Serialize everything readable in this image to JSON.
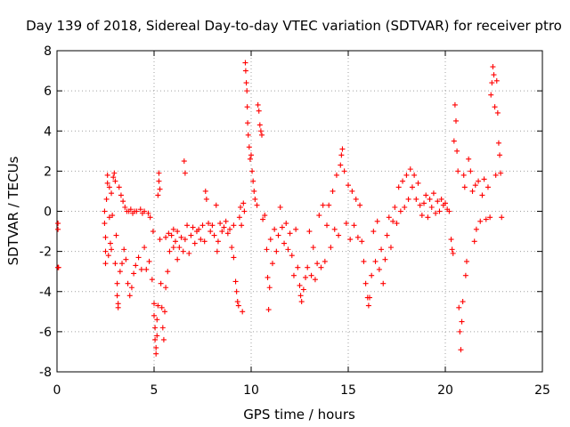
{
  "chart_data": {
    "type": "scatter",
    "title": "Day 139 of 2018, Sidereal Day-to-day VTEC variation (SDTVAR) for receiver ptro",
    "xlabel": "GPS time / hours",
    "ylabel": "SDTVAR / TECUs",
    "xlim": [
      0,
      25
    ],
    "ylim": [
      -8,
      8
    ],
    "x_ticks": [
      0,
      5,
      10,
      15,
      20,
      25
    ],
    "y_ticks": [
      -8,
      -6,
      -4,
      -2,
      0,
      2,
      4,
      6,
      8
    ],
    "x_tick_labels": [
      "0",
      "5",
      "10",
      "15",
      "20",
      "25"
    ],
    "y_tick_labels": [
      "-8",
      "-6",
      "-4",
      "-2",
      "0",
      "2",
      "4",
      "6",
      "8"
    ],
    "grid": true,
    "marker": "+",
    "color": "#ff0000",
    "series": [
      {
        "name": "ptro",
        "points": [
          [
            0.05,
            -0.6
          ],
          [
            0.05,
            -0.9
          ],
          [
            0.05,
            -2.8
          ],
          [
            0.08,
            -2.8
          ],
          [
            2.45,
            0.0
          ],
          [
            2.45,
            -0.6
          ],
          [
            2.5,
            -1.3
          ],
          [
            2.5,
            -2.0
          ],
          [
            2.5,
            -2.6
          ],
          [
            2.55,
            0.6
          ],
          [
            2.6,
            1.4
          ],
          [
            2.6,
            1.8
          ],
          [
            2.65,
            -2.2
          ],
          [
            2.7,
            -0.3
          ],
          [
            2.7,
            1.2
          ],
          [
            2.75,
            -1.6
          ],
          [
            2.8,
            -1.9
          ],
          [
            2.8,
            0.9
          ],
          [
            2.85,
            -0.2
          ],
          [
            2.9,
            1.7
          ],
          [
            2.95,
            1.9
          ],
          [
            3.0,
            -2.6
          ],
          [
            3.0,
            1.5
          ],
          [
            3.05,
            -1.2
          ],
          [
            3.1,
            -3.6
          ],
          [
            3.1,
            -4.2
          ],
          [
            3.15,
            -4.6
          ],
          [
            3.15,
            -4.8
          ],
          [
            3.2,
            1.2
          ],
          [
            3.25,
            -3.0
          ],
          [
            3.3,
            0.8
          ],
          [
            3.35,
            -2.6
          ],
          [
            3.4,
            0.5
          ],
          [
            3.45,
            -1.9
          ],
          [
            3.5,
            0.2
          ],
          [
            3.55,
            -2.4
          ],
          [
            3.6,
            0.0
          ],
          [
            3.65,
            -3.6
          ],
          [
            3.7,
            0.0
          ],
          [
            3.75,
            -4.2
          ],
          [
            3.8,
            0.1
          ],
          [
            3.85,
            -3.8
          ],
          [
            3.9,
            -0.1
          ],
          [
            3.95,
            -3.1
          ],
          [
            4.0,
            0.0
          ],
          [
            4.05,
            -2.7
          ],
          [
            4.1,
            0.0
          ],
          [
            4.2,
            -2.3
          ],
          [
            4.3,
            0.1
          ],
          [
            4.35,
            -2.9
          ],
          [
            4.4,
            -0.1
          ],
          [
            4.5,
            -1.8
          ],
          [
            4.5,
            0.0
          ],
          [
            4.6,
            -2.9
          ],
          [
            4.7,
            -0.1
          ],
          [
            4.75,
            -2.5
          ],
          [
            4.8,
            -0.3
          ],
          [
            4.9,
            -3.4
          ],
          [
            4.95,
            -1.0
          ],
          [
            5.0,
            -4.6
          ],
          [
            5.0,
            -5.2
          ],
          [
            5.05,
            -5.8
          ],
          [
            5.05,
            -6.4
          ],
          [
            5.1,
            -6.8
          ],
          [
            5.1,
            -7.1
          ],
          [
            5.15,
            -6.2
          ],
          [
            5.15,
            -5.4
          ],
          [
            5.2,
            -4.7
          ],
          [
            5.2,
            0.8
          ],
          [
            5.25,
            1.5
          ],
          [
            5.25,
            1.9
          ],
          [
            5.3,
            1.1
          ],
          [
            5.3,
            -1.4
          ],
          [
            5.35,
            -3.6
          ],
          [
            5.4,
            -4.8
          ],
          [
            5.45,
            -5.8
          ],
          [
            5.5,
            -6.4
          ],
          [
            5.55,
            -5.0
          ],
          [
            5.6,
            -3.8
          ],
          [
            5.6,
            -1.3
          ],
          [
            5.7,
            -3.0
          ],
          [
            5.75,
            -1.1
          ],
          [
            5.8,
            -2.0
          ],
          [
            5.9,
            -1.2
          ],
          [
            6.0,
            -0.9
          ],
          [
            6.0,
            -1.8
          ],
          [
            6.1,
            -1.5
          ],
          [
            6.2,
            -1.0
          ],
          [
            6.2,
            -2.4
          ],
          [
            6.3,
            -1.8
          ],
          [
            6.4,
            -1.3
          ],
          [
            6.5,
            -2.0
          ],
          [
            6.55,
            2.5
          ],
          [
            6.6,
            1.9
          ],
          [
            6.6,
            -1.4
          ],
          [
            6.7,
            -0.7
          ],
          [
            6.8,
            -2.1
          ],
          [
            6.9,
            -1.2
          ],
          [
            7.0,
            -0.8
          ],
          [
            7.1,
            -1.6
          ],
          [
            7.2,
            -1.0
          ],
          [
            7.3,
            -0.9
          ],
          [
            7.4,
            -1.4
          ],
          [
            7.5,
            -0.7
          ],
          [
            7.6,
            -1.5
          ],
          [
            7.65,
            1.0
          ],
          [
            7.7,
            0.6
          ],
          [
            7.8,
            -0.6
          ],
          [
            7.9,
            -1.0
          ],
          [
            8.0,
            -0.7
          ],
          [
            8.1,
            -1.2
          ],
          [
            8.2,
            0.3
          ],
          [
            8.25,
            -2.0
          ],
          [
            8.3,
            -1.5
          ],
          [
            8.4,
            -0.6
          ],
          [
            8.5,
            -1.0
          ],
          [
            8.6,
            -0.8
          ],
          [
            8.7,
            -0.5
          ],
          [
            8.8,
            -1.1
          ],
          [
            8.9,
            -0.9
          ],
          [
            9.0,
            -1.8
          ],
          [
            9.1,
            -2.3
          ],
          [
            9.1,
            -0.7
          ],
          [
            9.2,
            -3.5
          ],
          [
            9.25,
            -4.0
          ],
          [
            9.3,
            -4.5
          ],
          [
            9.35,
            -4.7
          ],
          [
            9.4,
            -0.3
          ],
          [
            9.45,
            0.2
          ],
          [
            9.5,
            -0.7
          ],
          [
            9.55,
            -5.0
          ],
          [
            9.6,
            0.4
          ],
          [
            9.65,
            0.0
          ],
          [
            9.7,
            7.4
          ],
          [
            9.72,
            7.0
          ],
          [
            9.75,
            6.4
          ],
          [
            9.78,
            6.0
          ],
          [
            9.8,
            5.2
          ],
          [
            9.82,
            4.4
          ],
          [
            9.85,
            3.8
          ],
          [
            9.9,
            3.2
          ],
          [
            9.95,
            2.6
          ],
          [
            10.0,
            2.8
          ],
          [
            10.05,
            2.0
          ],
          [
            10.1,
            1.5
          ],
          [
            10.15,
            1.0
          ],
          [
            10.2,
            0.6
          ],
          [
            10.3,
            0.3
          ],
          [
            10.35,
            5.3
          ],
          [
            10.4,
            5.0
          ],
          [
            10.45,
            4.3
          ],
          [
            10.5,
            4.0
          ],
          [
            10.55,
            3.8
          ],
          [
            10.6,
            -0.4
          ],
          [
            10.7,
            -0.2
          ],
          [
            10.8,
            -1.9
          ],
          [
            10.85,
            -3.3
          ],
          [
            10.9,
            -4.9
          ],
          [
            10.95,
            -3.8
          ],
          [
            11.0,
            -1.4
          ],
          [
            11.1,
            -2.6
          ],
          [
            11.2,
            -0.9
          ],
          [
            11.3,
            -2.0
          ],
          [
            11.4,
            -1.2
          ],
          [
            11.5,
            0.2
          ],
          [
            11.6,
            -0.8
          ],
          [
            11.7,
            -1.6
          ],
          [
            11.8,
            -0.6
          ],
          [
            11.9,
            -1.9
          ],
          [
            12.0,
            -1.1
          ],
          [
            12.1,
            -2.2
          ],
          [
            12.2,
            -3.2
          ],
          [
            12.3,
            -0.9
          ],
          [
            12.4,
            -2.8
          ],
          [
            12.5,
            -3.7
          ],
          [
            12.55,
            -4.2
          ],
          [
            12.6,
            -4.5
          ],
          [
            12.7,
            -3.9
          ],
          [
            12.8,
            -3.3
          ],
          [
            12.9,
            -2.8
          ],
          [
            13.0,
            -1.0
          ],
          [
            13.1,
            -3.2
          ],
          [
            13.2,
            -1.8
          ],
          [
            13.3,
            -3.4
          ],
          [
            13.4,
            -2.6
          ],
          [
            13.5,
            -0.2
          ],
          [
            13.6,
            -2.8
          ],
          [
            13.7,
            0.3
          ],
          [
            13.8,
            -2.5
          ],
          [
            13.9,
            -0.7
          ],
          [
            14.0,
            0.3
          ],
          [
            14.1,
            -1.8
          ],
          [
            14.2,
            1.0
          ],
          [
            14.3,
            -0.9
          ],
          [
            14.4,
            1.8
          ],
          [
            14.5,
            -1.2
          ],
          [
            14.6,
            2.3
          ],
          [
            14.65,
            2.8
          ],
          [
            14.7,
            3.1
          ],
          [
            14.8,
            2.0
          ],
          [
            14.9,
            -0.6
          ],
          [
            15.0,
            1.3
          ],
          [
            15.1,
            -1.4
          ],
          [
            15.2,
            1.0
          ],
          [
            15.3,
            -0.7
          ],
          [
            15.4,
            0.6
          ],
          [
            15.5,
            -1.3
          ],
          [
            15.6,
            0.3
          ],
          [
            15.7,
            -1.5
          ],
          [
            15.8,
            -2.5
          ],
          [
            15.9,
            -3.6
          ],
          [
            16.0,
            -4.3
          ],
          [
            16.05,
            -4.7
          ],
          [
            16.1,
            -4.3
          ],
          [
            16.2,
            -3.2
          ],
          [
            16.3,
            -1.0
          ],
          [
            16.4,
            -2.5
          ],
          [
            16.5,
            -0.5
          ],
          [
            16.6,
            -2.9
          ],
          [
            16.7,
            -1.9
          ],
          [
            16.8,
            -3.6
          ],
          [
            16.9,
            -2.4
          ],
          [
            17.0,
            -1.2
          ],
          [
            17.1,
            -0.3
          ],
          [
            17.2,
            -1.8
          ],
          [
            17.3,
            -0.5
          ],
          [
            17.4,
            0.2
          ],
          [
            17.5,
            -0.6
          ],
          [
            17.6,
            1.2
          ],
          [
            17.7,
            0.0
          ],
          [
            17.8,
            1.5
          ],
          [
            17.9,
            0.2
          ],
          [
            18.0,
            1.8
          ],
          [
            18.1,
            0.6
          ],
          [
            18.2,
            2.1
          ],
          [
            18.3,
            1.2
          ],
          [
            18.4,
            1.8
          ],
          [
            18.5,
            0.6
          ],
          [
            18.6,
            1.4
          ],
          [
            18.7,
            0.3
          ],
          [
            18.8,
            -0.2
          ],
          [
            18.9,
            0.4
          ],
          [
            19.0,
            0.8
          ],
          [
            19.1,
            -0.3
          ],
          [
            19.2,
            0.6
          ],
          [
            19.3,
            0.2
          ],
          [
            19.4,
            0.9
          ],
          [
            19.5,
            -0.1
          ],
          [
            19.6,
            0.5
          ],
          [
            19.7,
            0.0
          ],
          [
            19.8,
            0.6
          ],
          [
            19.9,
            0.3
          ],
          [
            20.0,
            0.4
          ],
          [
            20.1,
            0.1
          ],
          [
            20.2,
            0.0
          ],
          [
            20.3,
            -1.4
          ],
          [
            20.35,
            -1.9
          ],
          [
            20.4,
            -2.1
          ],
          [
            20.45,
            3.5
          ],
          [
            20.5,
            5.3
          ],
          [
            20.55,
            4.5
          ],
          [
            20.6,
            3.0
          ],
          [
            20.65,
            2.0
          ],
          [
            20.7,
            -4.8
          ],
          [
            20.75,
            -6.0
          ],
          [
            20.8,
            -6.9
          ],
          [
            20.85,
            -5.5
          ],
          [
            20.9,
            -4.5
          ],
          [
            20.95,
            1.8
          ],
          [
            21.0,
            1.2
          ],
          [
            21.05,
            -3.2
          ],
          [
            21.1,
            -2.5
          ],
          [
            21.2,
            2.6
          ],
          [
            21.3,
            2.0
          ],
          [
            21.4,
            1.0
          ],
          [
            21.5,
            -1.5
          ],
          [
            21.55,
            1.3
          ],
          [
            21.6,
            -0.9
          ],
          [
            21.7,
            1.5
          ],
          [
            21.8,
            -0.5
          ],
          [
            21.9,
            0.8
          ],
          [
            22.0,
            1.6
          ],
          [
            22.1,
            -0.4
          ],
          [
            22.2,
            1.2
          ],
          [
            22.3,
            -0.3
          ],
          [
            22.35,
            5.8
          ],
          [
            22.4,
            6.4
          ],
          [
            22.45,
            7.2
          ],
          [
            22.5,
            6.8
          ],
          [
            22.55,
            5.2
          ],
          [
            22.6,
            1.8
          ],
          [
            22.65,
            6.5
          ],
          [
            22.7,
            4.9
          ],
          [
            22.75,
            3.4
          ],
          [
            22.8,
            2.8
          ],
          [
            22.85,
            1.9
          ],
          [
            22.9,
            -0.3
          ]
        ]
      }
    ]
  }
}
